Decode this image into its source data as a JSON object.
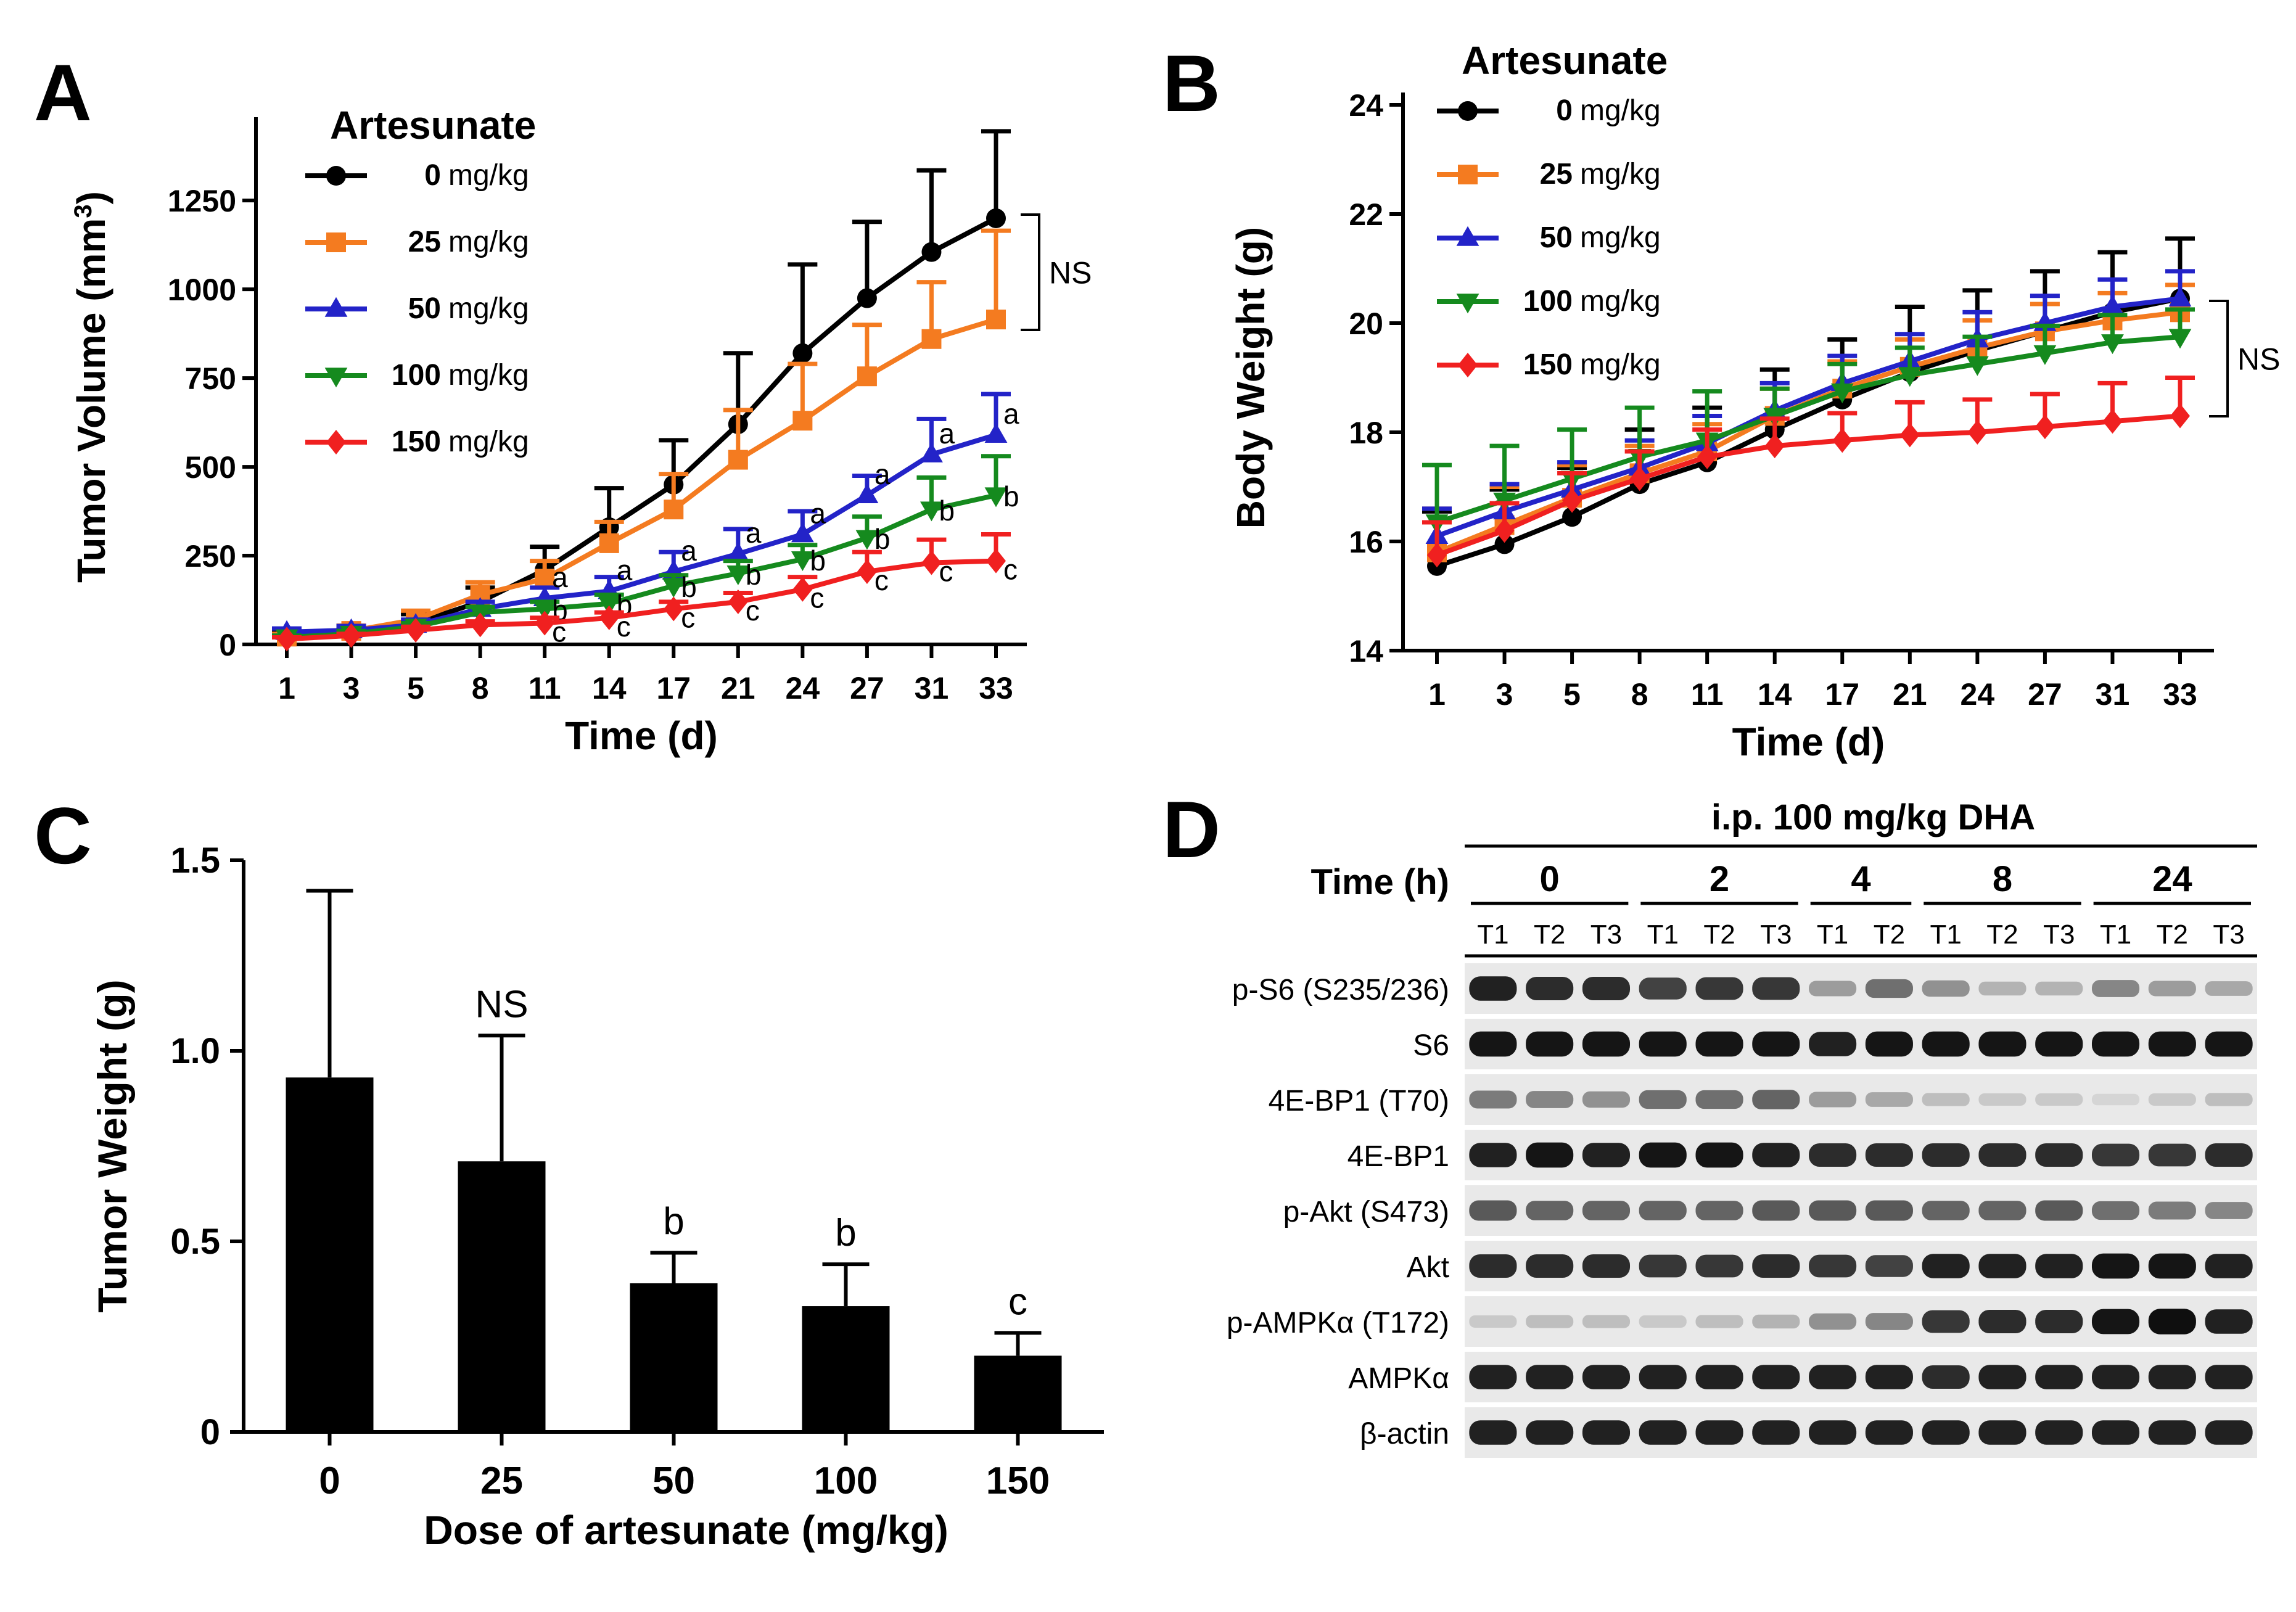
{
  "chart_data": [
    {
      "panel": "A",
      "type": "line",
      "title": "",
      "legend_title": "Artesunate",
      "xlabel": "Time (d)",
      "ylabel_main": "Tumor Volume (mm",
      "ylabel_sup": "3",
      "ylabel_close": ")",
      "categories": [
        "1",
        "3",
        "5",
        "8",
        "11",
        "14",
        "17",
        "21",
        "24",
        "27",
        "31",
        "33"
      ],
      "yticks": [
        "0",
        "250",
        "500",
        "750",
        "1000",
        "1250"
      ],
      "ylim": [
        0,
        1450
      ],
      "ns_label": "NS",
      "series": [
        {
          "name": "0",
          "unit": "mg/kg",
          "color": "#000000",
          "marker": "circle",
          "values": [
            25,
            35,
            60,
            120,
            210,
            330,
            450,
            620,
            820,
            975,
            1105,
            1200
          ],
          "errors": [
            10,
            15,
            25,
            40,
            65,
            110,
            125,
            200,
            250,
            215,
            230,
            245
          ],
          "letters": []
        },
        {
          "name": "25",
          "unit": "mg/kg",
          "color": "#f47b20",
          "marker": "square",
          "values": [
            22,
            38,
            70,
            140,
            185,
            285,
            380,
            520,
            630,
            755,
            860,
            915
          ],
          "errors": [
            8,
            15,
            25,
            35,
            50,
            60,
            100,
            140,
            160,
            145,
            160,
            250
          ],
          "letters": []
        },
        {
          "name": "50",
          "unit": "mg/kg",
          "color": "#2323c8",
          "marker": "triangle-up",
          "values": [
            35,
            40,
            55,
            100,
            130,
            150,
            205,
            255,
            310,
            420,
            535,
            590
          ],
          "errors": [
            10,
            12,
            15,
            20,
            30,
            40,
            55,
            70,
            65,
            55,
            100,
            115
          ],
          "letters": [
            "",
            "",
            "",
            "",
            "a",
            "a",
            "a",
            "a",
            "a",
            "a",
            "a",
            "a"
          ]
        },
        {
          "name": "100",
          "unit": "mg/kg",
          "color": "#158a1e",
          "marker": "triangle-down",
          "values": [
            20,
            30,
            50,
            90,
            100,
            115,
            165,
            200,
            240,
            300,
            380,
            420
          ],
          "errors": [
            5,
            8,
            10,
            15,
            20,
            25,
            30,
            35,
            40,
            60,
            90,
            110
          ],
          "letters": [
            "",
            "",
            "",
            "",
            "b",
            "b",
            "b",
            "b",
            "b",
            "b",
            "b",
            "b"
          ]
        },
        {
          "name": "150",
          "unit": "mg/kg",
          "color": "#f02020",
          "marker": "diamond",
          "values": [
            15,
            25,
            40,
            55,
            60,
            75,
            100,
            120,
            155,
            205,
            230,
            235
          ],
          "errors": [
            5,
            5,
            10,
            10,
            15,
            15,
            20,
            25,
            35,
            55,
            65,
            75
          ],
          "letters": [
            "",
            "",
            "",
            "",
            "c",
            "c",
            "c",
            "c",
            "c",
            "c",
            "c",
            "c"
          ]
        }
      ]
    },
    {
      "panel": "B",
      "type": "line",
      "title": "",
      "legend_title": "Artesunate",
      "xlabel": "Time (d)",
      "ylabel": "Body Weight (g)",
      "categories": [
        "1",
        "3",
        "5",
        "8",
        "11",
        "14",
        "17",
        "21",
        "24",
        "27",
        "31",
        "33"
      ],
      "yticks": [
        "14",
        "16",
        "18",
        "20",
        "22",
        "24"
      ],
      "ylim": [
        14,
        24
      ],
      "ns_label": "NS",
      "series": [
        {
          "name": "0",
          "unit": "mg/kg",
          "color": "#000000",
          "marker": "circle",
          "values": [
            15.55,
            15.95,
            16.45,
            17.05,
            17.45,
            18.05,
            18.6,
            19.1,
            19.5,
            19.85,
            20.2,
            20.45
          ],
          "errors": [
            1.0,
            1.0,
            0.9,
            1.0,
            1.0,
            1.1,
            1.1,
            1.2,
            1.1,
            1.1,
            1.1,
            1.1
          ]
        },
        {
          "name": "25",
          "unit": "mg/kg",
          "color": "#f47b20",
          "marker": "square",
          "values": [
            15.8,
            16.3,
            16.8,
            17.25,
            17.65,
            18.3,
            18.8,
            19.2,
            19.55,
            19.85,
            20.05,
            20.2
          ],
          "errors": [
            0.8,
            0.7,
            0.6,
            0.5,
            0.5,
            0.5,
            0.5,
            0.5,
            0.5,
            0.5,
            0.5,
            0.5
          ]
        },
        {
          "name": "50",
          "unit": "mg/kg",
          "color": "#2323c8",
          "marker": "triangle-up",
          "values": [
            16.1,
            16.55,
            16.95,
            17.35,
            17.8,
            18.4,
            18.9,
            19.3,
            19.7,
            20.0,
            20.3,
            20.45
          ],
          "errors": [
            0.5,
            0.5,
            0.5,
            0.5,
            0.5,
            0.5,
            0.5,
            0.5,
            0.5,
            0.5,
            0.5,
            0.5
          ]
        },
        {
          "name": "100",
          "unit": "mg/kg",
          "color": "#158a1e",
          "marker": "triangle-down",
          "values": [
            16.35,
            16.75,
            17.15,
            17.55,
            17.85,
            18.3,
            18.75,
            19.05,
            19.25,
            19.45,
            19.65,
            19.75
          ],
          "errors": [
            1.05,
            1.0,
            0.9,
            0.9,
            0.9,
            0.5,
            0.5,
            0.5,
            0.5,
            0.5,
            0.5,
            0.5
          ]
        },
        {
          "name": "150",
          "unit": "mg/kg",
          "color": "#f02020",
          "marker": "diamond",
          "values": [
            15.75,
            16.2,
            16.75,
            17.15,
            17.55,
            17.75,
            17.85,
            17.95,
            18.0,
            18.1,
            18.2,
            18.3
          ],
          "errors": [
            0.6,
            0.5,
            0.5,
            0.5,
            0.5,
            0.5,
            0.5,
            0.6,
            0.6,
            0.6,
            0.7,
            0.7
          ]
        }
      ]
    },
    {
      "panel": "C",
      "type": "bar",
      "title": "",
      "xlabel": "Dose of artesunate (mg/kg)",
      "ylabel": "Tumor Weight (g)",
      "categories": [
        "0",
        "25",
        "50",
        "100",
        "150"
      ],
      "values": [
        0.93,
        0.71,
        0.39,
        0.33,
        0.2
      ],
      "errors": [
        0.49,
        0.33,
        0.08,
        0.11,
        0.06
      ],
      "bar_labels": [
        "",
        "NS",
        "b",
        "b",
        "c"
      ],
      "yticks": [
        "0",
        "0.5",
        "1.0",
        "1.5"
      ],
      "ylim": [
        0,
        1.5
      ]
    }
  ],
  "blot": {
    "panel": "D",
    "treatment": "i.p. 100 mg/kg DHA",
    "time_label": "Time (h)",
    "timepoints": [
      {
        "label": "0",
        "lanes": [
          "T1",
          "T2",
          "T3"
        ]
      },
      {
        "label": "2",
        "lanes": [
          "T1",
          "T2",
          "T3"
        ]
      },
      {
        "label": "4",
        "lanes": [
          "T1",
          "T2"
        ]
      },
      {
        "label": "8",
        "lanes": [
          "T1",
          "T2",
          "T3"
        ]
      },
      {
        "label": "24",
        "lanes": [
          "T1",
          "T2",
          "T3"
        ]
      }
    ],
    "rows": [
      {
        "label": "p-S6 (S235/236)",
        "intensity": [
          0.9,
          0.85,
          0.85,
          0.75,
          0.8,
          0.8,
          0.35,
          0.55,
          0.4,
          0.25,
          0.25,
          0.45,
          0.35,
          0.3
        ]
      },
      {
        "label": "S6",
        "intensity": [
          0.95,
          0.95,
          0.95,
          0.95,
          0.95,
          0.95,
          0.9,
          0.95,
          0.95,
          0.95,
          0.95,
          0.95,
          0.95,
          0.95
        ]
      },
      {
        "label": "4E-BP1 (T70)",
        "intensity": [
          0.5,
          0.45,
          0.4,
          0.55,
          0.55,
          0.6,
          0.35,
          0.3,
          0.2,
          0.15,
          0.15,
          0.1,
          0.15,
          0.2
        ]
      },
      {
        "label": "4E-BP1",
        "intensity": [
          0.9,
          0.95,
          0.9,
          0.95,
          0.95,
          0.9,
          0.85,
          0.85,
          0.85,
          0.85,
          0.85,
          0.8,
          0.8,
          0.85
        ]
      },
      {
        "label": "p-Akt (S473)",
        "intensity": [
          0.65,
          0.6,
          0.6,
          0.6,
          0.6,
          0.65,
          0.65,
          0.65,
          0.6,
          0.6,
          0.65,
          0.55,
          0.5,
          0.45
        ]
      },
      {
        "label": "Akt",
        "intensity": [
          0.85,
          0.85,
          0.85,
          0.8,
          0.8,
          0.85,
          0.8,
          0.75,
          0.9,
          0.9,
          0.9,
          0.95,
          0.95,
          0.9
        ]
      },
      {
        "label": "p-AMPKα (T172)",
        "intensity": [
          0.15,
          0.2,
          0.2,
          0.15,
          0.2,
          0.25,
          0.4,
          0.45,
          0.8,
          0.85,
          0.85,
          0.95,
          0.98,
          0.9
        ]
      },
      {
        "label": "AMPKα",
        "intensity": [
          0.9,
          0.9,
          0.9,
          0.9,
          0.9,
          0.9,
          0.9,
          0.9,
          0.85,
          0.9,
          0.9,
          0.9,
          0.9,
          0.9
        ]
      },
      {
        "label": "β-actin",
        "intensity": [
          0.9,
          0.9,
          0.9,
          0.9,
          0.9,
          0.9,
          0.9,
          0.9,
          0.9,
          0.9,
          0.9,
          0.9,
          0.9,
          0.9
        ]
      }
    ]
  }
}
